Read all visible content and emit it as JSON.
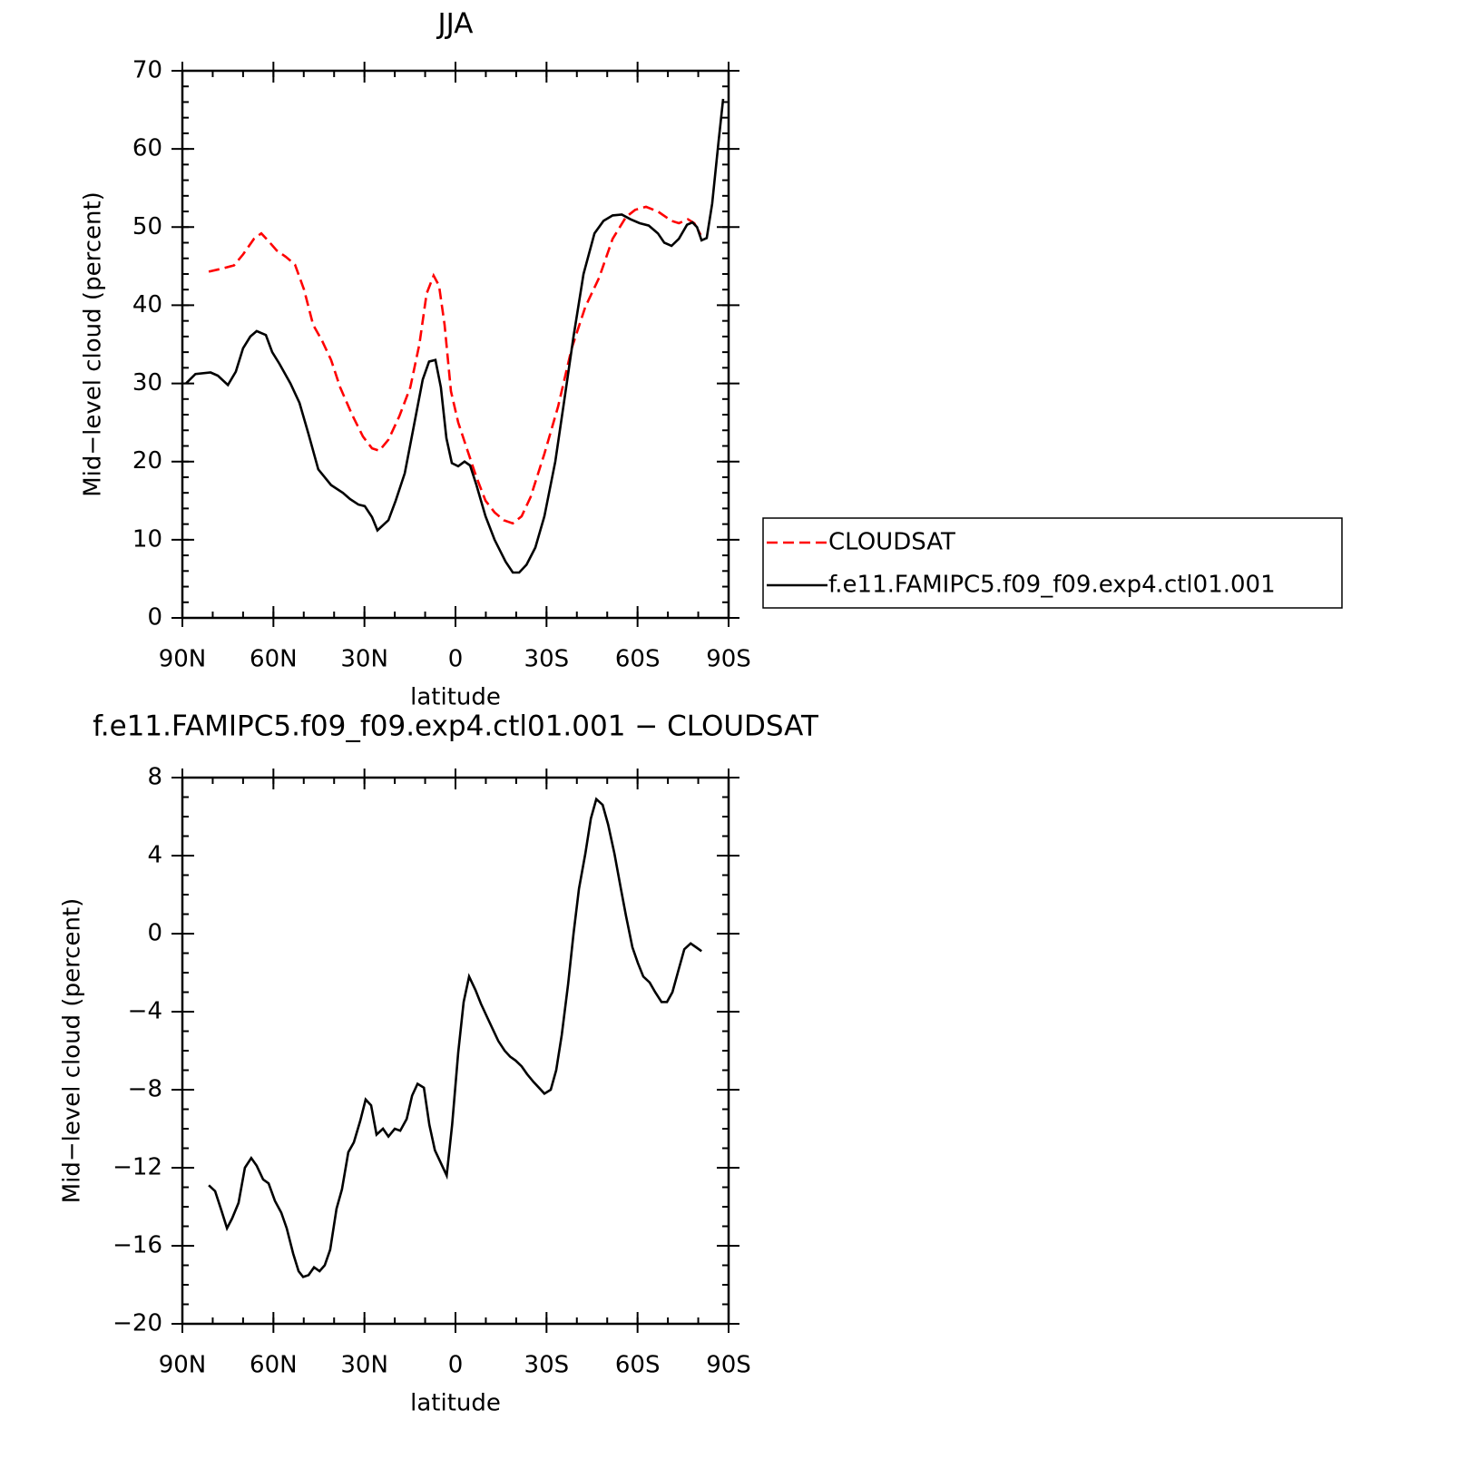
{
  "chart_data": [
    {
      "type": "line",
      "title": "JJA",
      "xlabel": "latitude",
      "ylabel": "Mid−level cloud (percent)",
      "xlim": [
        90,
        -90
      ],
      "xticks": [
        {
          "value": 90,
          "label": "90N"
        },
        {
          "value": 60,
          "label": "60N"
        },
        {
          "value": 30,
          "label": "30N"
        },
        0,
        {
          "value": -30,
          "label": "30S"
        },
        {
          "value": -60,
          "label": "60S"
        },
        {
          "value": -90,
          "label": "90S"
        }
      ],
      "xminorstep": 10,
      "ylim": [
        0,
        70
      ],
      "yticks": [
        0,
        10,
        20,
        30,
        40,
        50,
        60,
        70
      ],
      "yminorstep": 2,
      "legend": "right",
      "series": [
        {
          "name": "CLOUDSAT",
          "color": "#ff0000",
          "style": "dashed",
          "x": [
            81.3,
            76.8,
            73,
            70,
            66.4,
            64,
            61.6,
            58.9,
            55.9,
            52.9,
            49.9,
            46.9,
            44,
            41,
            38,
            34.1,
            30.5,
            27.5,
            25.1,
            22.1,
            18.5,
            14.9,
            11.9,
            9.5,
            7.2,
            5.4,
            3.6,
            1.5,
            -0.9,
            -3.9,
            -6.9,
            -9.9,
            -12.9,
            -15.9,
            -18.9,
            -21.8,
            -24.8,
            -29.3,
            -33.8,
            -38.3,
            -42.8,
            -47.3,
            -51.8,
            -56.2,
            -59.2,
            -62.8,
            -66.7,
            -71.2,
            -73.6,
            -76.6,
            -78.7,
            -80.8
          ],
          "values": [
            44.3,
            44.7,
            45.1,
            46.5,
            48.5,
            49.2,
            48.2,
            47,
            46.2,
            45.2,
            42,
            37.5,
            35.5,
            33,
            29.5,
            26,
            23.2,
            21.7,
            21.4,
            22.8,
            25.8,
            29.5,
            35,
            41.5,
            43.8,
            42.5,
            37.5,
            29,
            25,
            21.5,
            18,
            15,
            13.5,
            12.5,
            12.1,
            13,
            15.5,
            21,
            27,
            34.5,
            39.8,
            43.5,
            48.5,
            51.3,
            52.2,
            52.6,
            52,
            50.8,
            50.5,
            51,
            50.5,
            49
          ]
        },
        {
          "name": "f.e11.FAMIPC5.f09_f09.exp4.ctl01.001",
          "color": "#000000",
          "style": "solid",
          "x": [
            88.8,
            85.7,
            80.7,
            78.3,
            75,
            72.4,
            70,
            67.6,
            65.5,
            62.5,
            60.4,
            58,
            54.4,
            51.4,
            48.4,
            45.2,
            41,
            37.1,
            34.7,
            32,
            29.9,
            27.5,
            25.7,
            22.1,
            19.7,
            16.7,
            14,
            10.8,
            8.7,
            6.6,
            4.8,
            3,
            1.2,
            -0.9,
            -3,
            -4.8,
            -6.9,
            -9.9,
            -12.9,
            -16.5,
            -18.9,
            -21,
            -23.4,
            -26.3,
            -29.3,
            -32.9,
            -35.9,
            -38.9,
            -42.2,
            -45.8,
            -48.8,
            -51.8,
            -54.8,
            -57.7,
            -60.7,
            -63.7,
            -66.7,
            -68.8,
            -71.2,
            -73.6,
            -76.3,
            -78.1,
            -79.6,
            -81.1,
            -82.8,
            -84.6,
            -86.7,
            -88.2
          ],
          "values": [
            30,
            31.2,
            31.4,
            31,
            29.8,
            31.5,
            34.5,
            36,
            36.7,
            36.2,
            34,
            32.5,
            30,
            27.5,
            23.5,
            19,
            17,
            16,
            15.2,
            14.5,
            14.3,
            12.9,
            11.2,
            12.5,
            15,
            18.5,
            24,
            30.5,
            32.8,
            33,
            29.5,
            23,
            19.8,
            19.4,
            20,
            19.5,
            17,
            13,
            10,
            7.2,
            5.8,
            5.8,
            6.8,
            9,
            13,
            20,
            28,
            36,
            44,
            49.2,
            50.8,
            51.5,
            51.6,
            51,
            50.5,
            50.2,
            49.2,
            48,
            47.6,
            48.5,
            50.3,
            50.6,
            50,
            48.3,
            48.6,
            53,
            61,
            66.4
          ]
        }
      ]
    },
    {
      "type": "line",
      "title": "f.e11.FAMIPC5.f09_f09.exp4.ctl01.001 − CLOUDSAT",
      "xlabel": "latitude",
      "ylabel": "Mid−level cloud (percent)",
      "xlim": [
        90,
        -90
      ],
      "xticks": [
        {
          "value": 90,
          "label": "90N"
        },
        {
          "value": 60,
          "label": "60N"
        },
        {
          "value": 30,
          "label": "30N"
        },
        0,
        {
          "value": -30,
          "label": "30S"
        },
        {
          "value": -60,
          "label": "60S"
        },
        {
          "value": -90,
          "label": "90S"
        }
      ],
      "xminorstep": 10,
      "ylim": [
        -20,
        8
      ],
      "yticks": [
        {
          "value": -20,
          "label": "−20"
        },
        {
          "value": -16,
          "label": "−16"
        },
        {
          "value": -12,
          "label": "−12"
        },
        {
          "value": -8,
          "label": "−8"
        },
        {
          "value": -4,
          "label": "−4"
        },
        0,
        4,
        8
      ],
      "yminorstep": 1,
      "series": [
        {
          "color": "#000000",
          "style": "solid",
          "x": [
            81.3,
            79.2,
            77.1,
            75.3,
            73.6,
            71.5,
            69.4,
            67.3,
            65.5,
            63.4,
            61.6,
            59.5,
            57.4,
            55.6,
            53.5,
            51.7,
            50.2,
            48.4,
            46.6,
            44.8,
            43.1,
            41.3,
            39.2,
            37.4,
            35.3,
            33.5,
            31.4,
            29.6,
            27.8,
            26,
            23.9,
            22.1,
            20,
            18.2,
            16.1,
            14.3,
            12.5,
            10.4,
            8.6,
            6.8,
            4.7,
            2.9,
            1.1,
            -0.9,
            -2.7,
            -4.5,
            -6.6,
            -8.4,
            -10.5,
            -12.3,
            -14.1,
            -16.2,
            -18,
            -19.8,
            -21.8,
            -23.6,
            -25.7,
            -27.5,
            -29.3,
            -31.4,
            -33.2,
            -35,
            -37.1,
            -38.9,
            -40.7,
            -42.8,
            -44.6,
            -46.4,
            -48.5,
            -50.3,
            -52.4,
            -54.5,
            -56.2,
            -58.3,
            -60.1,
            -61.9,
            -64,
            -65.8,
            -67.9,
            -69.7,
            -71.5,
            -73.6,
            -75.4,
            -77.5,
            -79.3,
            -81.1
          ],
          "values": [
            -12.9,
            -13.2,
            -14.2,
            -15.1,
            -14.6,
            -13.8,
            -12,
            -11.5,
            -11.9,
            -12.6,
            -12.8,
            -13.7,
            -14.3,
            -15.1,
            -16.4,
            -17.3,
            -17.6,
            -17.5,
            -17.1,
            -17.3,
            -17,
            -16.2,
            -14.1,
            -13.1,
            -11.2,
            -10.7,
            -9.6,
            -8.5,
            -8.8,
            -10.3,
            -10,
            -10.4,
            -10,
            -10.1,
            -9.5,
            -8.3,
            -7.7,
            -7.9,
            -9.8,
            -11.1,
            -11.8,
            -12.4,
            -9.8,
            -6.1,
            -3.5,
            -2.2,
            -2.9,
            -3.6,
            -4.3,
            -4.9,
            -5.5,
            -6,
            -6.3,
            -6.5,
            -6.8,
            -7.2,
            -7.6,
            -7.9,
            -8.2,
            -8,
            -7,
            -5.2,
            -2.6,
            0,
            2.3,
            4.1,
            5.9,
            6.9,
            6.6,
            5.6,
            4.1,
            2.3,
            0.9,
            -0.7,
            -1.5,
            -2.2,
            -2.5,
            -3,
            -3.5,
            -3.5,
            -3,
            -1.8,
            -0.8,
            -0.5,
            -0.7,
            -0.9
          ]
        }
      ]
    }
  ]
}
